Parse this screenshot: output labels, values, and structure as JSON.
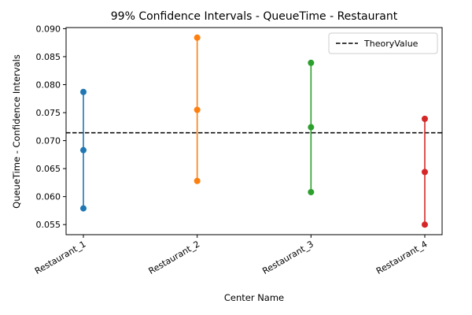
{
  "chart_data": {
    "type": "scatter",
    "title": "99% Confidence Intervals - QueueTime - Restaurant",
    "xlabel": "Center Name",
    "ylabel": "QueueTime - Confidence Intervals",
    "categories": [
      "Restaurant_1",
      "Restaurant_2",
      "Restaurant_3",
      "Restaurant_4"
    ],
    "ylim": [
      0.0532,
      0.0902
    ],
    "yticks": [
      "0.055",
      "0.060",
      "0.065",
      "0.070",
      "0.075",
      "0.080",
      "0.085",
      "0.090"
    ],
    "series": [
      {
        "category": "Restaurant_1",
        "lower": 0.0579,
        "mean": 0.0683,
        "upper": 0.0787,
        "color": "#1f77b4"
      },
      {
        "category": "Restaurant_2",
        "lower": 0.0628,
        "mean": 0.0755,
        "upper": 0.0884,
        "color": "#ff7f0e"
      },
      {
        "category": "Restaurant_3",
        "lower": 0.0608,
        "mean": 0.0724,
        "upper": 0.0839,
        "color": "#2ca02c"
      },
      {
        "category": "Restaurant_4",
        "lower": 0.055,
        "mean": 0.0644,
        "upper": 0.0739,
        "color": "#d62728"
      }
    ],
    "reference_line": {
      "name": "TheoryValue",
      "value": 0.0714,
      "style": "dashed",
      "color": "#000000"
    },
    "legend": {
      "entries": [
        "TheoryValue"
      ],
      "placement": "top-right"
    },
    "grid": false
  }
}
